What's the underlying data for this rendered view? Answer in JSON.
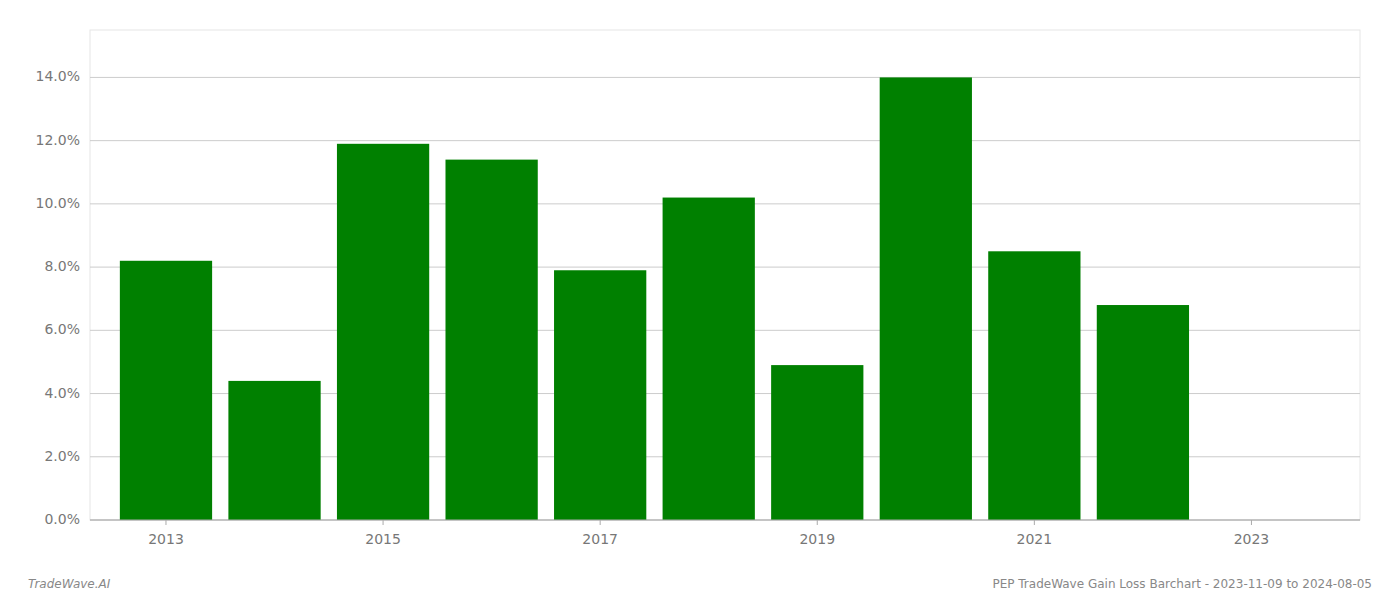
{
  "chart_data": {
    "type": "bar",
    "x": [
      2013,
      2014,
      2015,
      2016,
      2017,
      2018,
      2019,
      2020,
      2021,
      2022
    ],
    "values": [
      0.082,
      0.044,
      0.119,
      0.114,
      0.079,
      0.102,
      0.049,
      0.14,
      0.085,
      0.068
    ],
    "color": "#008000",
    "xlim": [
      2012.3,
      2024.0
    ],
    "xticks": [
      2013,
      2015,
      2017,
      2019,
      2021,
      2023
    ],
    "ylim": [
      0,
      0.155
    ],
    "yticks": [
      {
        "value": 0.0,
        "label": "0.0%"
      },
      {
        "value": 0.02,
        "label": "2.0%"
      },
      {
        "value": 0.04,
        "label": "4.0%"
      },
      {
        "value": 0.06,
        "label": "6.0%"
      },
      {
        "value": 0.08,
        "label": "8.0%"
      },
      {
        "value": 0.1,
        "label": "10.0%"
      },
      {
        "value": 0.12,
        "label": "12.0%"
      },
      {
        "value": 0.14,
        "label": "14.0%"
      }
    ],
    "annotations": [
      "TradeWave.AI",
      "PEP TradeWave Gain Loss Barchart - 2023-11-09 to 2024-08-05"
    ],
    "grid": true
  }
}
